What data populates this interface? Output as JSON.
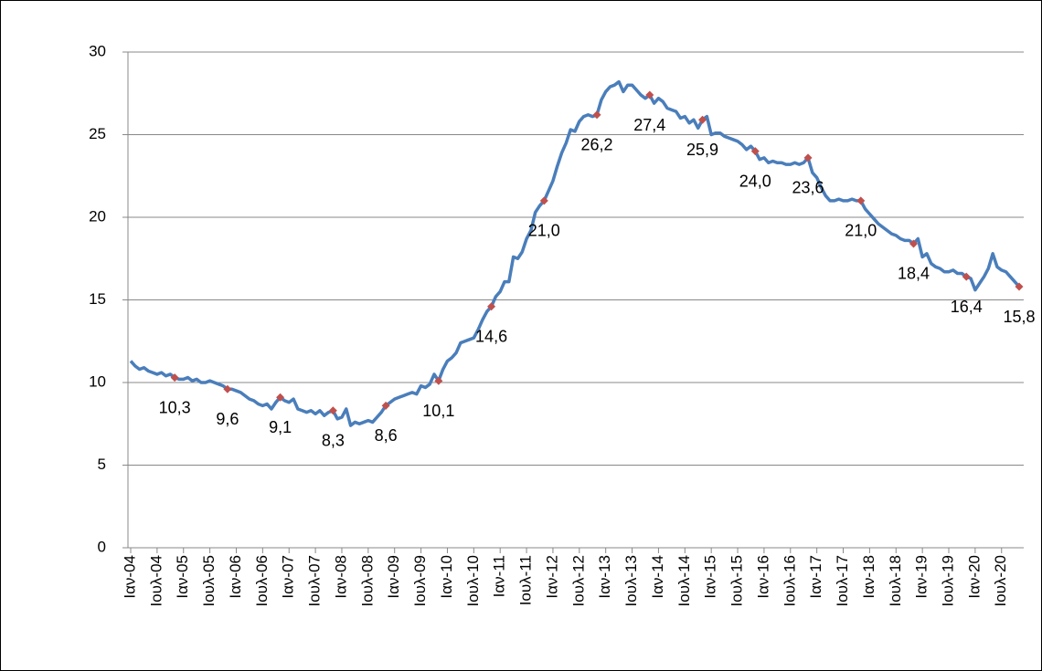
{
  "chart_data": {
    "type": "line",
    "categories": [
      "Ιαν-04",
      null,
      null,
      null,
      null,
      null,
      "Ιουλ-04",
      null,
      null,
      null,
      null,
      null,
      "Ιαν-05",
      null,
      null,
      null,
      null,
      null,
      "Ιουλ-05",
      null,
      null,
      null,
      null,
      null,
      "Ιαν-06",
      null,
      null,
      null,
      null,
      null,
      "Ιουλ-06",
      null,
      null,
      null,
      null,
      null,
      "Ιαν-07",
      null,
      null,
      null,
      null,
      null,
      "Ιουλ-07",
      null,
      null,
      null,
      null,
      null,
      "Ιαν-08",
      null,
      null,
      null,
      null,
      null,
      "Ιουλ-08",
      null,
      null,
      null,
      null,
      null,
      "Ιαν-09",
      null,
      null,
      null,
      null,
      null,
      "Ιουλ-09",
      null,
      null,
      null,
      null,
      null,
      "Ιαν-10",
      null,
      null,
      null,
      null,
      null,
      "Ιουλ-10",
      null,
      null,
      null,
      null,
      null,
      "Ιαν-11",
      null,
      null,
      null,
      null,
      null,
      "Ιουλ-11",
      null,
      null,
      null,
      null,
      null,
      "Ιαν-12",
      null,
      null,
      null,
      null,
      null,
      "Ιουλ-12",
      null,
      null,
      null,
      null,
      null,
      "Ιαν-13",
      null,
      null,
      null,
      null,
      null,
      "Ιουλ-13",
      null,
      null,
      null,
      null,
      null,
      "Ιαν-14",
      null,
      null,
      null,
      null,
      null,
      "Ιουλ-14",
      null,
      null,
      null,
      null,
      null,
      "Ιαν-15",
      null,
      null,
      null,
      null,
      null,
      "Ιουλ-15",
      null,
      null,
      null,
      null,
      null,
      "Ιαν-16",
      null,
      null,
      null,
      null,
      null,
      "Ιουλ-16",
      null,
      null,
      null,
      null,
      null,
      "Ιαν-17",
      null,
      null,
      null,
      null,
      null,
      "Ιουλ-17",
      null,
      null,
      null,
      null,
      null,
      "Ιαν-18",
      null,
      null,
      null,
      null,
      null,
      "Ιουλ-18",
      null,
      null,
      null,
      null,
      null,
      "Ιαν-19",
      null,
      null,
      null,
      null,
      null,
      "Ιουλ-19",
      null,
      null,
      null,
      null,
      null,
      "Ιαν-20",
      null,
      null,
      null,
      null,
      null,
      "Ιουλ-20",
      null,
      null,
      null,
      null
    ],
    "series": [
      {
        "color": "#4a7ebb",
        "values": [
          11.3,
          11.0,
          10.8,
          10.9,
          10.7,
          10.6,
          10.5,
          10.6,
          10.4,
          10.5,
          10.3,
          10.2,
          10.2,
          10.3,
          10.1,
          10.2,
          10.0,
          10.0,
          10.1,
          10.0,
          9.9,
          9.8,
          9.6,
          9.6,
          9.5,
          9.4,
          9.2,
          9.0,
          8.9,
          8.7,
          8.6,
          8.7,
          8.4,
          8.8,
          9.1,
          8.9,
          8.8,
          9.0,
          8.4,
          8.3,
          8.2,
          8.3,
          8.1,
          8.3,
          8.0,
          8.2,
          8.3,
          7.8,
          7.9,
          8.4,
          7.4,
          7.6,
          7.5,
          7.6,
          7.7,
          7.6,
          7.9,
          8.2,
          8.6,
          8.8,
          9.0,
          9.1,
          9.2,
          9.3,
          9.4,
          9.3,
          9.8,
          9.7,
          9.9,
          10.5,
          10.1,
          10.8,
          11.3,
          11.5,
          11.8,
          12.4,
          12.5,
          12.6,
          12.7,
          13.2,
          13.8,
          14.3,
          14.6,
          15.2,
          15.5,
          16.1,
          16.1,
          17.6,
          17.5,
          17.9,
          18.7,
          19.2,
          20.3,
          20.7,
          21.0,
          21.6,
          22.2,
          23.1,
          23.9,
          24.5,
          25.3,
          25.2,
          25.8,
          26.1,
          26.2,
          26.1,
          26.2,
          27.1,
          27.6,
          27.9,
          28.0,
          28.2,
          27.6,
          28.0,
          28.0,
          27.7,
          27.4,
          27.2,
          27.4,
          26.9,
          27.2,
          27.0,
          26.6,
          26.5,
          26.4,
          26.0,
          26.1,
          25.7,
          25.9,
          25.4,
          25.9,
          26.1,
          25.0,
          25.1,
          25.1,
          24.9,
          24.8,
          24.7,
          24.6,
          24.4,
          24.1,
          24.3,
          24.0,
          23.5,
          23.6,
          23.3,
          23.4,
          23.3,
          23.3,
          23.2,
          23.2,
          23.3,
          23.2,
          23.3,
          23.6,
          22.7,
          22.4,
          21.8,
          21.3,
          21.0,
          21.0,
          21.1,
          21.0,
          21.0,
          21.1,
          21.0,
          21.0,
          20.5,
          20.2,
          19.9,
          19.6,
          19.4,
          19.2,
          19.0,
          18.9,
          18.7,
          18.6,
          18.6,
          18.4,
          18.7,
          17.6,
          17.8,
          17.2,
          17.0,
          16.9,
          16.7,
          16.7,
          16.8,
          16.6,
          16.6,
          16.4,
          16.3,
          15.6,
          16.0,
          16.4,
          16.9,
          17.8,
          17.0,
          16.8,
          16.7,
          16.4,
          16.1,
          15.8
        ]
      },
      {
        "color": "#c0504d",
        "marker": "diamond",
        "values": [
          null,
          null,
          null,
          null,
          null,
          null,
          null,
          null,
          null,
          null,
          10.3,
          null,
          null,
          null,
          null,
          null,
          null,
          null,
          null,
          null,
          null,
          null,
          9.6,
          null,
          null,
          null,
          null,
          null,
          null,
          null,
          null,
          null,
          null,
          null,
          9.1,
          null,
          null,
          null,
          null,
          null,
          null,
          null,
          null,
          null,
          null,
          null,
          8.3,
          null,
          null,
          null,
          null,
          null,
          null,
          null,
          null,
          null,
          null,
          null,
          8.6,
          null,
          null,
          null,
          null,
          null,
          null,
          null,
          null,
          null,
          null,
          null,
          10.1,
          null,
          null,
          null,
          null,
          null,
          null,
          null,
          null,
          null,
          null,
          null,
          14.6,
          null,
          null,
          null,
          null,
          null,
          null,
          null,
          null,
          null,
          null,
          null,
          21.0,
          null,
          null,
          null,
          null,
          null,
          null,
          null,
          null,
          null,
          null,
          null,
          26.2,
          null,
          null,
          null,
          null,
          null,
          null,
          null,
          null,
          null,
          null,
          null,
          27.4,
          null,
          null,
          null,
          null,
          null,
          null,
          null,
          null,
          null,
          null,
          null,
          25.9,
          null,
          null,
          null,
          null,
          null,
          null,
          null,
          null,
          null,
          null,
          null,
          24.0,
          null,
          null,
          null,
          null,
          null,
          null,
          null,
          null,
          null,
          null,
          null,
          23.6,
          null,
          null,
          null,
          null,
          null,
          null,
          null,
          null,
          null,
          null,
          null,
          21.0,
          null,
          null,
          null,
          null,
          null,
          null,
          null,
          null,
          null,
          null,
          null,
          18.4,
          null,
          null,
          null,
          null,
          null,
          null,
          null,
          null,
          null,
          null,
          null,
          16.4,
          null,
          null,
          null,
          null,
          null,
          null,
          null,
          null,
          null,
          null,
          null,
          15.8
        ],
        "value_labels": [
          null,
          null,
          null,
          null,
          null,
          null,
          null,
          null,
          null,
          null,
          "10,3",
          null,
          null,
          null,
          null,
          null,
          null,
          null,
          null,
          null,
          null,
          null,
          "9,6",
          null,
          null,
          null,
          null,
          null,
          null,
          null,
          null,
          null,
          null,
          null,
          "9,1",
          null,
          null,
          null,
          null,
          null,
          null,
          null,
          null,
          null,
          null,
          null,
          "8,3",
          null,
          null,
          null,
          null,
          null,
          null,
          null,
          null,
          null,
          null,
          null,
          "8,6",
          null,
          null,
          null,
          null,
          null,
          null,
          null,
          null,
          null,
          null,
          null,
          "10,1",
          null,
          null,
          null,
          null,
          null,
          null,
          null,
          null,
          null,
          null,
          null,
          "14,6",
          null,
          null,
          null,
          null,
          null,
          null,
          null,
          null,
          null,
          null,
          null,
          "21,0",
          null,
          null,
          null,
          null,
          null,
          null,
          null,
          null,
          null,
          null,
          null,
          "26,2",
          null,
          null,
          null,
          null,
          null,
          null,
          null,
          null,
          null,
          null,
          null,
          "27,4",
          null,
          null,
          null,
          null,
          null,
          null,
          null,
          null,
          null,
          null,
          null,
          "25,9",
          null,
          null,
          null,
          null,
          null,
          null,
          null,
          null,
          null,
          null,
          null,
          "24,0",
          null,
          null,
          null,
          null,
          null,
          null,
          null,
          null,
          null,
          null,
          null,
          "23,6",
          null,
          null,
          null,
          null,
          null,
          null,
          null,
          null,
          null,
          null,
          null,
          "21,0",
          null,
          null,
          null,
          null,
          null,
          null,
          null,
          null,
          null,
          null,
          null,
          "18,4",
          null,
          null,
          null,
          null,
          null,
          null,
          null,
          null,
          null,
          null,
          null,
          "16,4",
          null,
          null,
          null,
          null,
          null,
          null,
          null,
          null,
          null,
          null,
          null,
          "15,8"
        ]
      }
    ],
    "ylim": [
      0,
      30
    ],
    "yticks": [
      0,
      5,
      10,
      15,
      20,
      25,
      30
    ],
    "grid": true
  }
}
